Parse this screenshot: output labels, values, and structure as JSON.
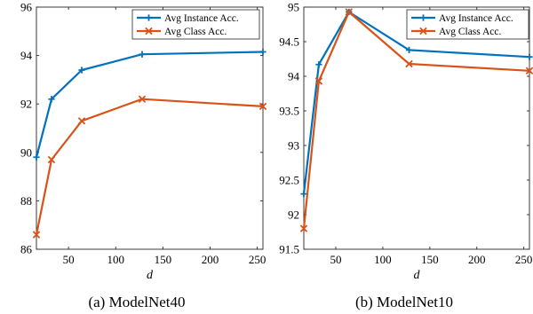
{
  "colors": {
    "instance": "#0072bd",
    "class": "#d95319"
  },
  "chart_data": [
    {
      "type": "line",
      "caption": "(a)  ModelNet40",
      "xlabel": "d",
      "xlim": [
        16,
        256
      ],
      "ylim": [
        86,
        96
      ],
      "xticks": [
        50,
        100,
        150,
        200,
        250
      ],
      "yticks": [
        86,
        88,
        90,
        92,
        94,
        96
      ],
      "grid": false,
      "legend": "top-right",
      "x": [
        16,
        32,
        64,
        128,
        256
      ],
      "series": [
        {
          "name": "Avg Instance Acc.",
          "color": "#0072bd",
          "marker": "plus",
          "values": [
            89.8,
            92.2,
            93.4,
            94.05,
            94.15
          ]
        },
        {
          "name": "Avg Class Acc.",
          "color": "#d95319",
          "marker": "cross",
          "values": [
            86.6,
            89.7,
            91.3,
            92.2,
            91.9
          ]
        }
      ]
    },
    {
      "type": "line",
      "caption": "(b)  ModelNet10",
      "xlabel": "d",
      "xlim": [
        16,
        256
      ],
      "ylim": [
        91.5,
        95
      ],
      "xticks": [
        50,
        100,
        150,
        200,
        250
      ],
      "yticks": [
        91.5,
        92,
        92.5,
        93,
        93.5,
        94,
        94.5,
        95
      ],
      "grid": false,
      "legend": "top-right",
      "x": [
        16,
        32,
        64,
        128,
        256
      ],
      "series": [
        {
          "name": "Avg Instance Acc.",
          "color": "#0072bd",
          "marker": "plus",
          "values": [
            92.3,
            94.17,
            94.93,
            94.38,
            94.28
          ]
        },
        {
          "name": "Avg Class Acc.",
          "color": "#d95319",
          "marker": "cross",
          "values": [
            91.8,
            93.93,
            94.93,
            94.18,
            94.08
          ]
        }
      ]
    }
  ]
}
